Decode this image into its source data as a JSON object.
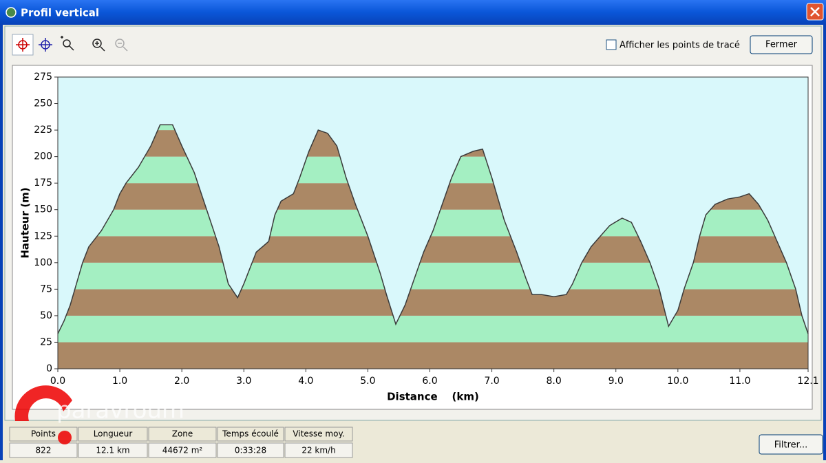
{
  "window": {
    "title": "Profil vertical"
  },
  "toolbar": {
    "checkbox_label": "Afficher les points de tracé",
    "close_button": "Fermer"
  },
  "chart_data": {
    "type": "area",
    "y_label": "Hauteur (m)",
    "x_label": "Distance    (km)",
    "x": [
      0.0,
      0.1,
      0.2,
      0.3,
      0.4,
      0.5,
      0.7,
      0.9,
      1.0,
      1.1,
      1.3,
      1.5,
      1.65,
      1.85,
      2.0,
      2.2,
      2.4,
      2.6,
      2.75,
      2.9,
      3.0,
      3.2,
      3.4,
      3.5,
      3.6,
      3.8,
      3.9,
      4.05,
      4.2,
      4.35,
      4.5,
      4.65,
      4.8,
      5.0,
      5.2,
      5.3,
      5.45,
      5.6,
      5.75,
      5.9,
      6.05,
      6.2,
      6.35,
      6.5,
      6.7,
      6.85,
      7.0,
      7.2,
      7.4,
      7.55,
      7.65,
      7.8,
      8.0,
      8.2,
      8.3,
      8.45,
      8.6,
      8.75,
      8.9,
      9.1,
      9.25,
      9.4,
      9.55,
      9.7,
      9.85,
      10.0,
      10.1,
      10.25,
      10.35,
      10.45,
      10.6,
      10.8,
      11.0,
      11.15,
      11.3,
      11.45,
      11.6,
      11.75,
      11.9,
      12.0,
      12.1
    ],
    "values": [
      33,
      45,
      60,
      80,
      100,
      115,
      130,
      150,
      165,
      175,
      190,
      210,
      230,
      230,
      210,
      185,
      150,
      115,
      80,
      67,
      80,
      110,
      120,
      145,
      158,
      165,
      180,
      205,
      225,
      222,
      210,
      180,
      155,
      125,
      90,
      70,
      42,
      60,
      85,
      110,
      130,
      155,
      180,
      200,
      205,
      207,
      180,
      140,
      110,
      85,
      70,
      70,
      68,
      70,
      80,
      100,
      115,
      125,
      135,
      142,
      138,
      120,
      100,
      75,
      40,
      55,
      75,
      100,
      125,
      145,
      155,
      160,
      162,
      165,
      155,
      140,
      120,
      100,
      75,
      50,
      33
    ],
    "xlim": [
      0,
      12.1
    ],
    "xticks": [
      {
        "value": 0,
        "label": "0.0"
      },
      {
        "value": 1,
        "label": "1.0"
      },
      {
        "value": 2,
        "label": "2.0"
      },
      {
        "value": 3,
        "label": "3.0"
      },
      {
        "value": 4,
        "label": "4.0"
      },
      {
        "value": 5,
        "label": "5.0"
      },
      {
        "value": 6,
        "label": "6.0"
      },
      {
        "value": 7,
        "label": "7.0"
      },
      {
        "value": 8,
        "label": "8.0"
      },
      {
        "value": 9,
        "label": "9.0"
      },
      {
        "value": 10,
        "label": "10.0"
      },
      {
        "value": 11,
        "label": "11.0"
      },
      12.1
    ],
    "ylim": [
      0,
      275
    ],
    "yticks": [
      0,
      25,
      50,
      75,
      100,
      125,
      150,
      175,
      200,
      225,
      250,
      275
    ],
    "band_colors": [
      "#ab8865",
      "#a4efc2"
    ],
    "background": "#d9f8fb",
    "line_color": "#3a3a3a"
  },
  "status": {
    "headers": [
      "Points",
      "Longueur",
      "Zone",
      "Temps écoulé",
      "Vitesse moy."
    ],
    "values": [
      "822",
      "12.1 km",
      "44672 m²",
      "0:33:28",
      "22 km/h"
    ]
  },
  "filter_button": "Filtrer...",
  "watermark": "paravroum"
}
